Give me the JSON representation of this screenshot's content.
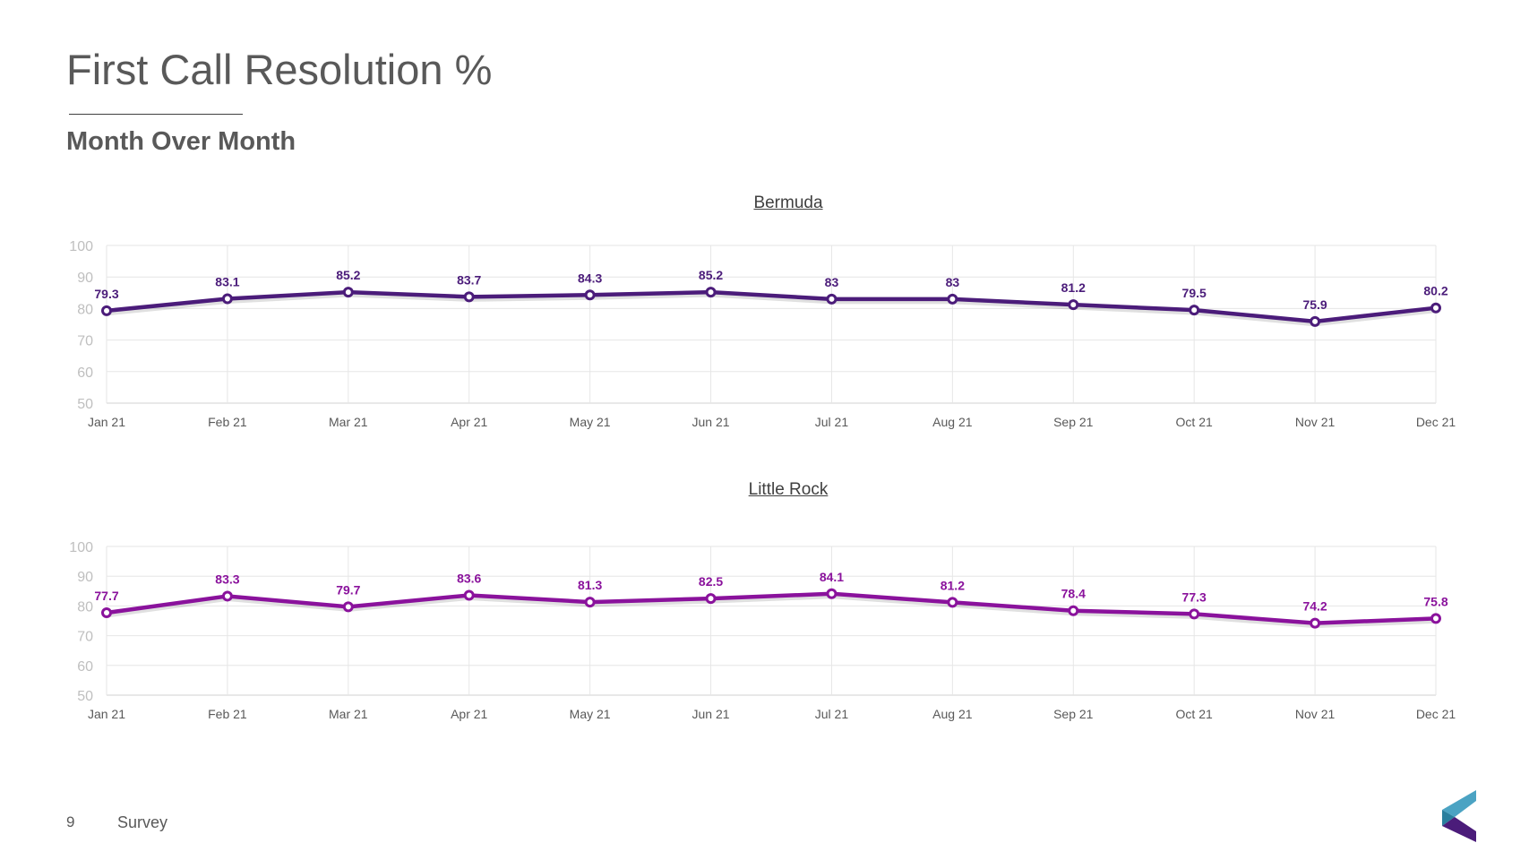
{
  "slide": {
    "title": "First Call Resolution %",
    "subtitle": "Month Over Month",
    "page_number": "9",
    "section": "Survey"
  },
  "colors": {
    "title_text": "#595959",
    "gridline": "#e6e6e6",
    "tick_label": "#bfbfbf",
    "axis_label": "#595959"
  },
  "chart_data": [
    {
      "type": "line",
      "title": "Bermuda",
      "categories": [
        "Jan 21",
        "Feb 21",
        "Mar 21",
        "Apr 21",
        "May 21",
        "Jun 21",
        "Jul 21",
        "Aug 21",
        "Sep 21",
        "Oct 21",
        "Nov 21",
        "Dec 21"
      ],
      "series": [
        {
          "values": [
            79.3,
            83.1,
            85.2,
            83.7,
            84.3,
            85.2,
            83,
            83,
            81.2,
            79.5,
            75.9,
            80.2
          ],
          "labels": [
            "79.3",
            "83.1",
            "85.2",
            "83.7",
            "84.3",
            "85.2",
            "83",
            "83",
            "81.2",
            "79.5",
            "75.9",
            "80.2"
          ],
          "color": "#4b1c7a"
        }
      ],
      "yticks": [
        "50",
        "60",
        "70",
        "80",
        "90",
        "100"
      ],
      "ylim": [
        50,
        100
      ],
      "xlabel": "",
      "ylabel": "",
      "grid": true,
      "legend": "none"
    },
    {
      "type": "line",
      "title": "Little Rock",
      "categories": [
        "Jan 21",
        "Feb 21",
        "Mar 21",
        "Apr 21",
        "May 21",
        "Jun 21",
        "Jul 21",
        "Aug 21",
        "Sep 21",
        "Oct 21",
        "Nov 21",
        "Dec 21"
      ],
      "series": [
        {
          "values": [
            77.7,
            83.3,
            79.7,
            83.6,
            81.3,
            82.5,
            84.1,
            81.2,
            78.4,
            77.3,
            74.2,
            75.8
          ],
          "labels": [
            "77.7",
            "83.3",
            "79.7",
            "83.6",
            "81.3",
            "82.5",
            "84.1",
            "81.2",
            "78.4",
            "77.3",
            "74.2",
            "75.8"
          ],
          "color": "#8a129c"
        }
      ],
      "yticks": [
        "50",
        "60",
        "70",
        "80",
        "90",
        "100"
      ],
      "ylim": [
        50,
        100
      ],
      "xlabel": "",
      "ylabel": "",
      "grid": true,
      "legend": "none"
    }
  ]
}
